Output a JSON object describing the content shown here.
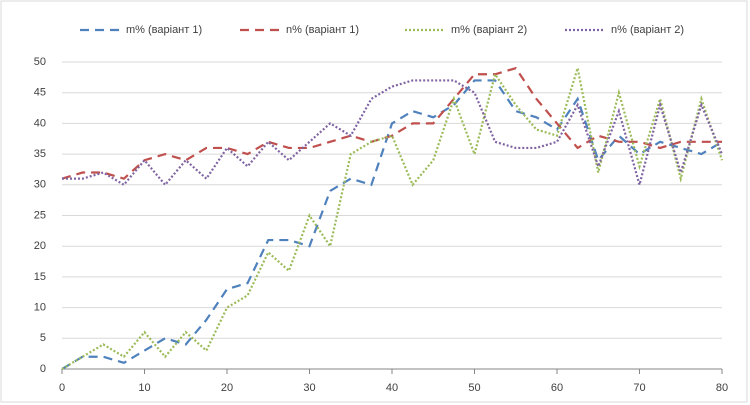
{
  "chart_data": {
    "type": "line",
    "x": [
      0,
      2.5,
      5,
      7.5,
      10,
      12.5,
      15,
      17.5,
      20,
      22.5,
      25,
      27.5,
      30,
      32.5,
      35,
      37.5,
      40,
      42.5,
      45,
      47.5,
      50,
      52.5,
      55,
      57.5,
      60,
      62.5,
      65,
      67.5,
      70,
      72.5,
      75,
      77.5,
      80
    ],
    "series": [
      {
        "name": "m% (варіант 1)",
        "color": "#4f81bd",
        "style": "dashed",
        "values": [
          0,
          2,
          2,
          1,
          3,
          5,
          4,
          8,
          13,
          14,
          21,
          21,
          20,
          29,
          31,
          30,
          40,
          42,
          41,
          43,
          47,
          47,
          42,
          41,
          39,
          44,
          34,
          38,
          35,
          37,
          36,
          35,
          37
        ]
      },
      {
        "name": "n% (варіант 1)",
        "color": "#c0504d",
        "style": "dashed",
        "values": [
          31,
          32,
          32,
          31,
          34,
          35,
          34,
          36,
          36,
          35,
          37,
          36,
          36,
          37,
          38,
          37,
          38,
          40,
          40,
          44,
          48,
          48,
          49,
          44,
          40,
          36,
          38,
          37,
          37,
          36,
          37,
          37,
          37
        ]
      },
      {
        "name": "m% (варіант 2)",
        "color": "#9bbb59",
        "style": "dotted",
        "values": [
          0,
          2,
          4,
          2,
          6,
          2,
          6,
          3,
          10,
          12,
          19,
          16,
          25,
          20,
          35,
          37,
          38,
          30,
          34,
          44,
          35,
          48,
          43,
          39,
          38,
          49,
          32,
          45,
          33,
          44,
          31,
          44,
          34
        ]
      },
      {
        "name": "n% (варіант 2)",
        "color": "#8064a2",
        "style": "dotted",
        "values": [
          31,
          31,
          32,
          30,
          34,
          30,
          34,
          31,
          36,
          33,
          37,
          34,
          37,
          40,
          38,
          44,
          46,
          47,
          47,
          47,
          45,
          37,
          36,
          36,
          37,
          43,
          33,
          42,
          30,
          43,
          32,
          43,
          35
        ]
      }
    ],
    "xlim": [
      0,
      80
    ],
    "xticks": [
      0,
      10,
      20,
      30,
      40,
      50,
      60,
      70,
      80
    ],
    "ylim": [
      0,
      50
    ],
    "yticks": [
      0,
      5,
      10,
      15,
      20,
      25,
      30,
      35,
      40,
      45,
      50
    ],
    "grid": true,
    "legend": "top"
  }
}
